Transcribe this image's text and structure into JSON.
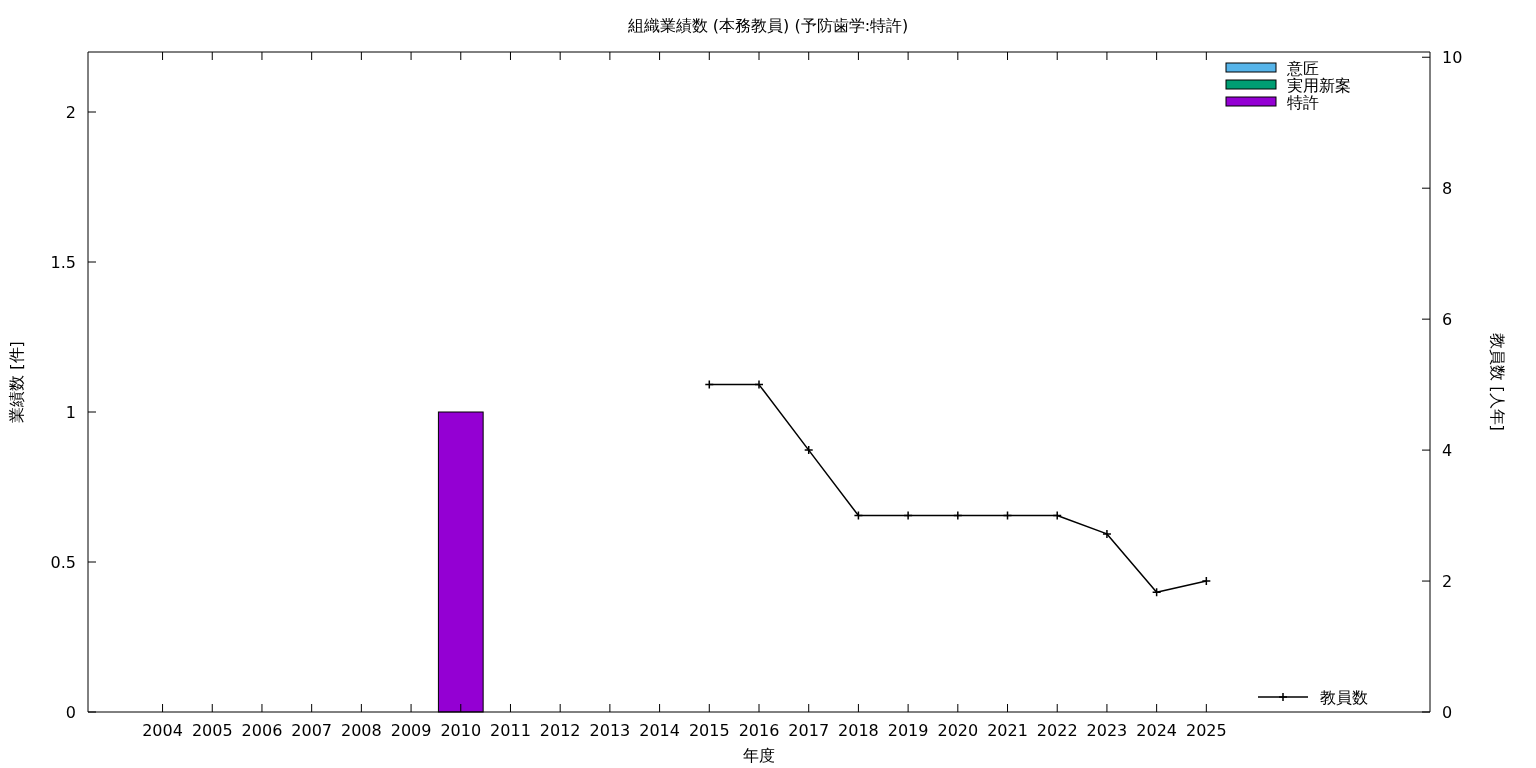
{
  "chart_data": {
    "type": "bar",
    "title": "組織業績数 (本務教員) (予防歯学:特許)",
    "xlabel": "年度",
    "ylabel": "業績数 [件]",
    "y2label": "教員数 [人年]",
    "categories": [
      null,
      "2004",
      "2005",
      "2006",
      "2007",
      "2008",
      "2009",
      "2010",
      "2011",
      "2012",
      "2013",
      "2014",
      "2015",
      "2016",
      "2017",
      "2018",
      "2019",
      "2020",
      "2021",
      "2022",
      "2023",
      "2024",
      "2025",
      null,
      null,
      null,
      null
    ],
    "ylim": [
      0,
      2.2
    ],
    "yticks": [
      0,
      0.5,
      1,
      1.5,
      2
    ],
    "y2lim": [
      0,
      10.08
    ],
    "y2ticks": [
      0,
      2,
      4,
      6,
      8,
      10
    ],
    "grid": false,
    "legend": "right",
    "series": [
      {
        "name": "意匠",
        "color": "#56b4e9",
        "values": [
          null,
          0,
          0,
          0,
          0,
          0,
          0,
          0,
          0,
          0,
          0,
          0,
          0,
          0,
          0,
          0,
          0,
          0,
          0,
          0,
          0,
          0,
          0,
          null,
          null,
          null,
          null
        ]
      },
      {
        "name": "実用新案",
        "color": "#009e73",
        "values": [
          null,
          0,
          0,
          0,
          0,
          0,
          0,
          0,
          0,
          0,
          0,
          0,
          0,
          0,
          0,
          0,
          0,
          0,
          0,
          0,
          0,
          0,
          0,
          null,
          null,
          null,
          null
        ]
      },
      {
        "name": "特許",
        "color": "#9400d3",
        "values": [
          null,
          0,
          0,
          0,
          0,
          0,
          0,
          1,
          0,
          0,
          0,
          0,
          0,
          0,
          0,
          0,
          0,
          0,
          0,
          0,
          0,
          0,
          0,
          null,
          null,
          null,
          null
        ]
      },
      {
        "name": "教員数",
        "type": "line",
        "axis": "y2",
        "color": "#000000",
        "marker": "cross",
        "line_style": "solid",
        "values": [
          null,
          null,
          null,
          null,
          null,
          null,
          null,
          null,
          null,
          null,
          null,
          null,
          5,
          5,
          4,
          3,
          3,
          3,
          3,
          3,
          2.72,
          1.83,
          2,
          null,
          null,
          null,
          null
        ]
      }
    ]
  }
}
